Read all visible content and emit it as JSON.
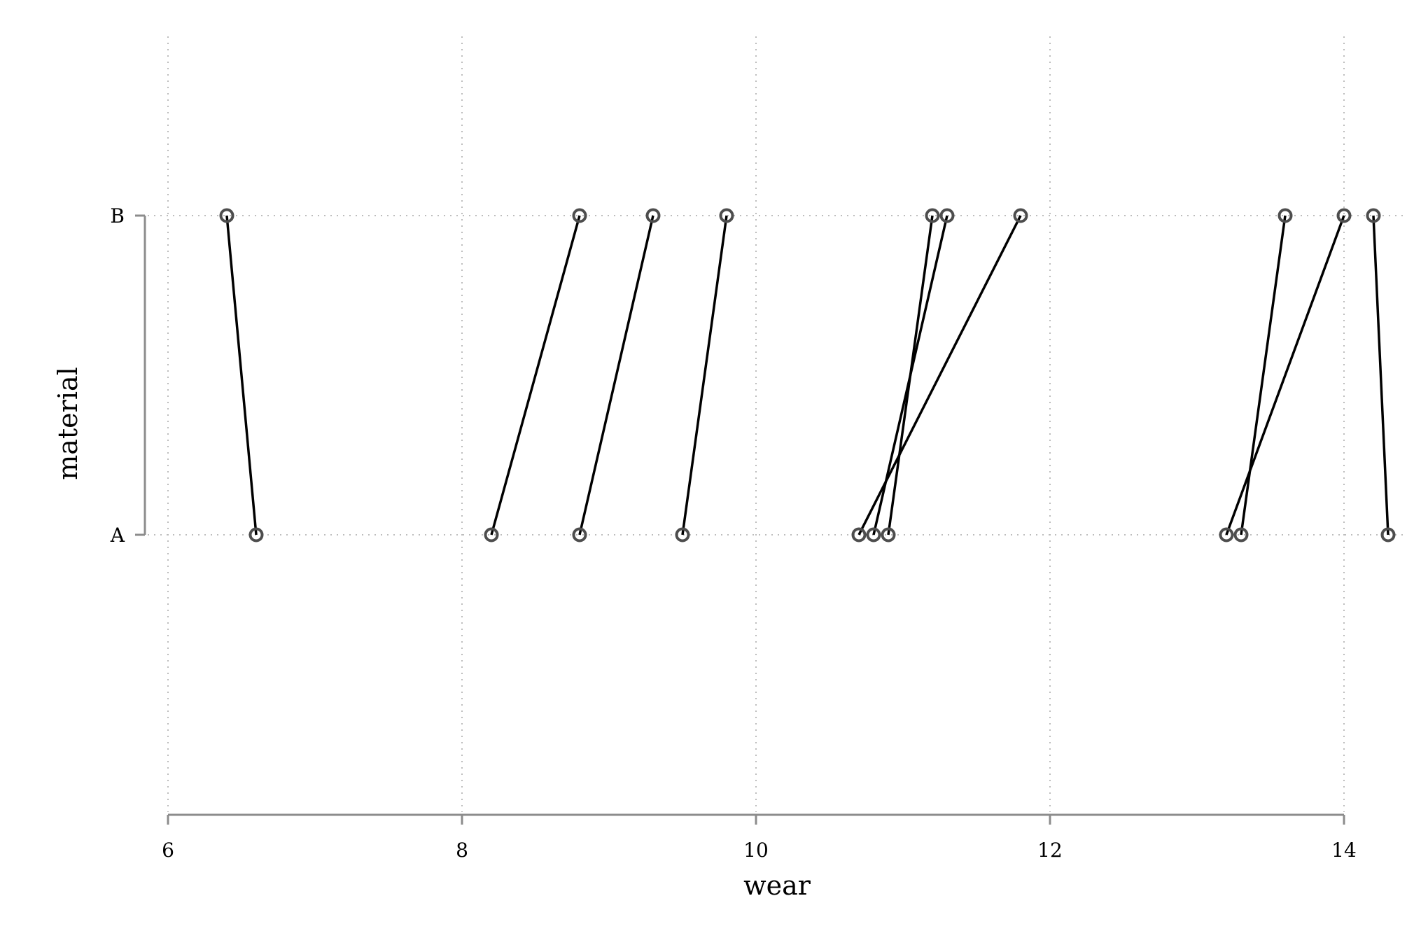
{
  "chart_data": {
    "type": "line",
    "title": "",
    "xlabel": "wear",
    "ylabel": "material",
    "xlim": [
      6,
      14.4
    ],
    "xticks": [
      6,
      8,
      10,
      12,
      14
    ],
    "yticks": [
      "A",
      "B"
    ],
    "grid": true,
    "colors": {
      "line": "#000000",
      "marker_edge": "#4d4d4d",
      "axis": "#8c8c8c",
      "grid": "#bdbdbd",
      "background": "#ffffff"
    },
    "pairs": [
      {
        "A": 6.6,
        "B": 6.4
      },
      {
        "A": 8.2,
        "B": 8.8
      },
      {
        "A": 8.8,
        "B": 9.3
      },
      {
        "A": 9.5,
        "B": 9.8
      },
      {
        "A": 10.7,
        "B": 11.8
      },
      {
        "A": 10.8,
        "B": 11.3
      },
      {
        "A": 10.9,
        "B": 11.2
      },
      {
        "A": 13.2,
        "B": 14.0
      },
      {
        "A": 13.3,
        "B": 13.6
      },
      {
        "A": 14.3,
        "B": 14.2
      }
    ]
  }
}
